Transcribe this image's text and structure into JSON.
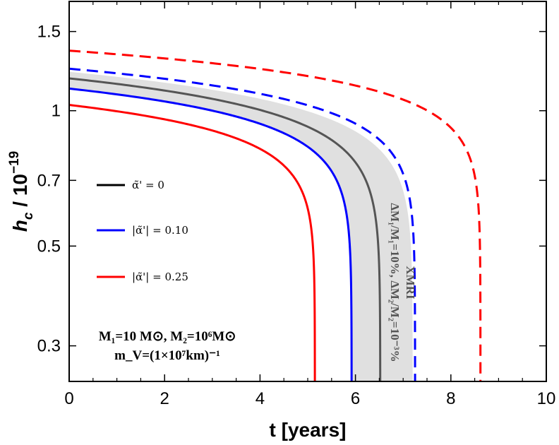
{
  "chart_data": {
    "type": "line",
    "xlabel": "t [years]",
    "ylabel": "h_c / 10^-19",
    "ylabel_parts": {
      "h": "h",
      "c": "c",
      "mid": " / 10",
      "exp": "−19"
    },
    "xlim": [
      0,
      10
    ],
    "ylim": [
      0.25,
      1.75
    ],
    "y_scale": "log",
    "x_ticks": [
      0,
      2,
      4,
      6,
      8,
      10
    ],
    "x_tick_labels": [
      "0",
      "2",
      "4",
      "6",
      "8",
      "10"
    ],
    "y_ticks": [
      0.3,
      0.5,
      0.7,
      1,
      1.5
    ],
    "y_tick_labels": [
      "0.3",
      "0.5",
      "0.7",
      "1",
      "1.5"
    ],
    "grid": false,
    "legend_position": "center-left",
    "series": [
      {
        "name": "α̃' = 0",
        "color": "#000000",
        "style": "solid",
        "t_end": 6.52,
        "h0": 1.18,
        "k": 0.17
      },
      {
        "name": "|α̃'| = 0.10",
        "color": "#0000ff",
        "style": "solid",
        "t_end": 5.92,
        "h0": 1.12,
        "k": 0.16
      },
      {
        "name": "|α̃'| = 0.25",
        "color": "#ff0000",
        "style": "solid",
        "t_end": 5.15,
        "h0": 1.03,
        "k": 0.15
      },
      {
        "name": "",
        "color": "#0000ff",
        "style": "dashed",
        "t_end": 7.25,
        "h0": 1.24,
        "k": 0.16
      },
      {
        "name": "",
        "color": "#ff0000",
        "style": "dashed",
        "t_end": 8.62,
        "h0": 1.36,
        "k": 0.15
      }
    ],
    "band": {
      "label": "XMRI",
      "color": "#e0e0e0",
      "t_end_low": 5.9,
      "t_end_high": 7.2,
      "h0_low": 1.12,
      "h0_high": 1.22,
      "center_color": "#555555"
    },
    "band_annotation_line1": "XMRI",
    "band_annotation_line2": "ΔM₁/M₁=10%, ΔM₂/M₂=10⁻³%",
    "annotation_line1": "M₁=10 M⊙, M₂=10⁶M⊙",
    "annotation_line2": "m_V=(1×10⁷km)⁻¹"
  }
}
